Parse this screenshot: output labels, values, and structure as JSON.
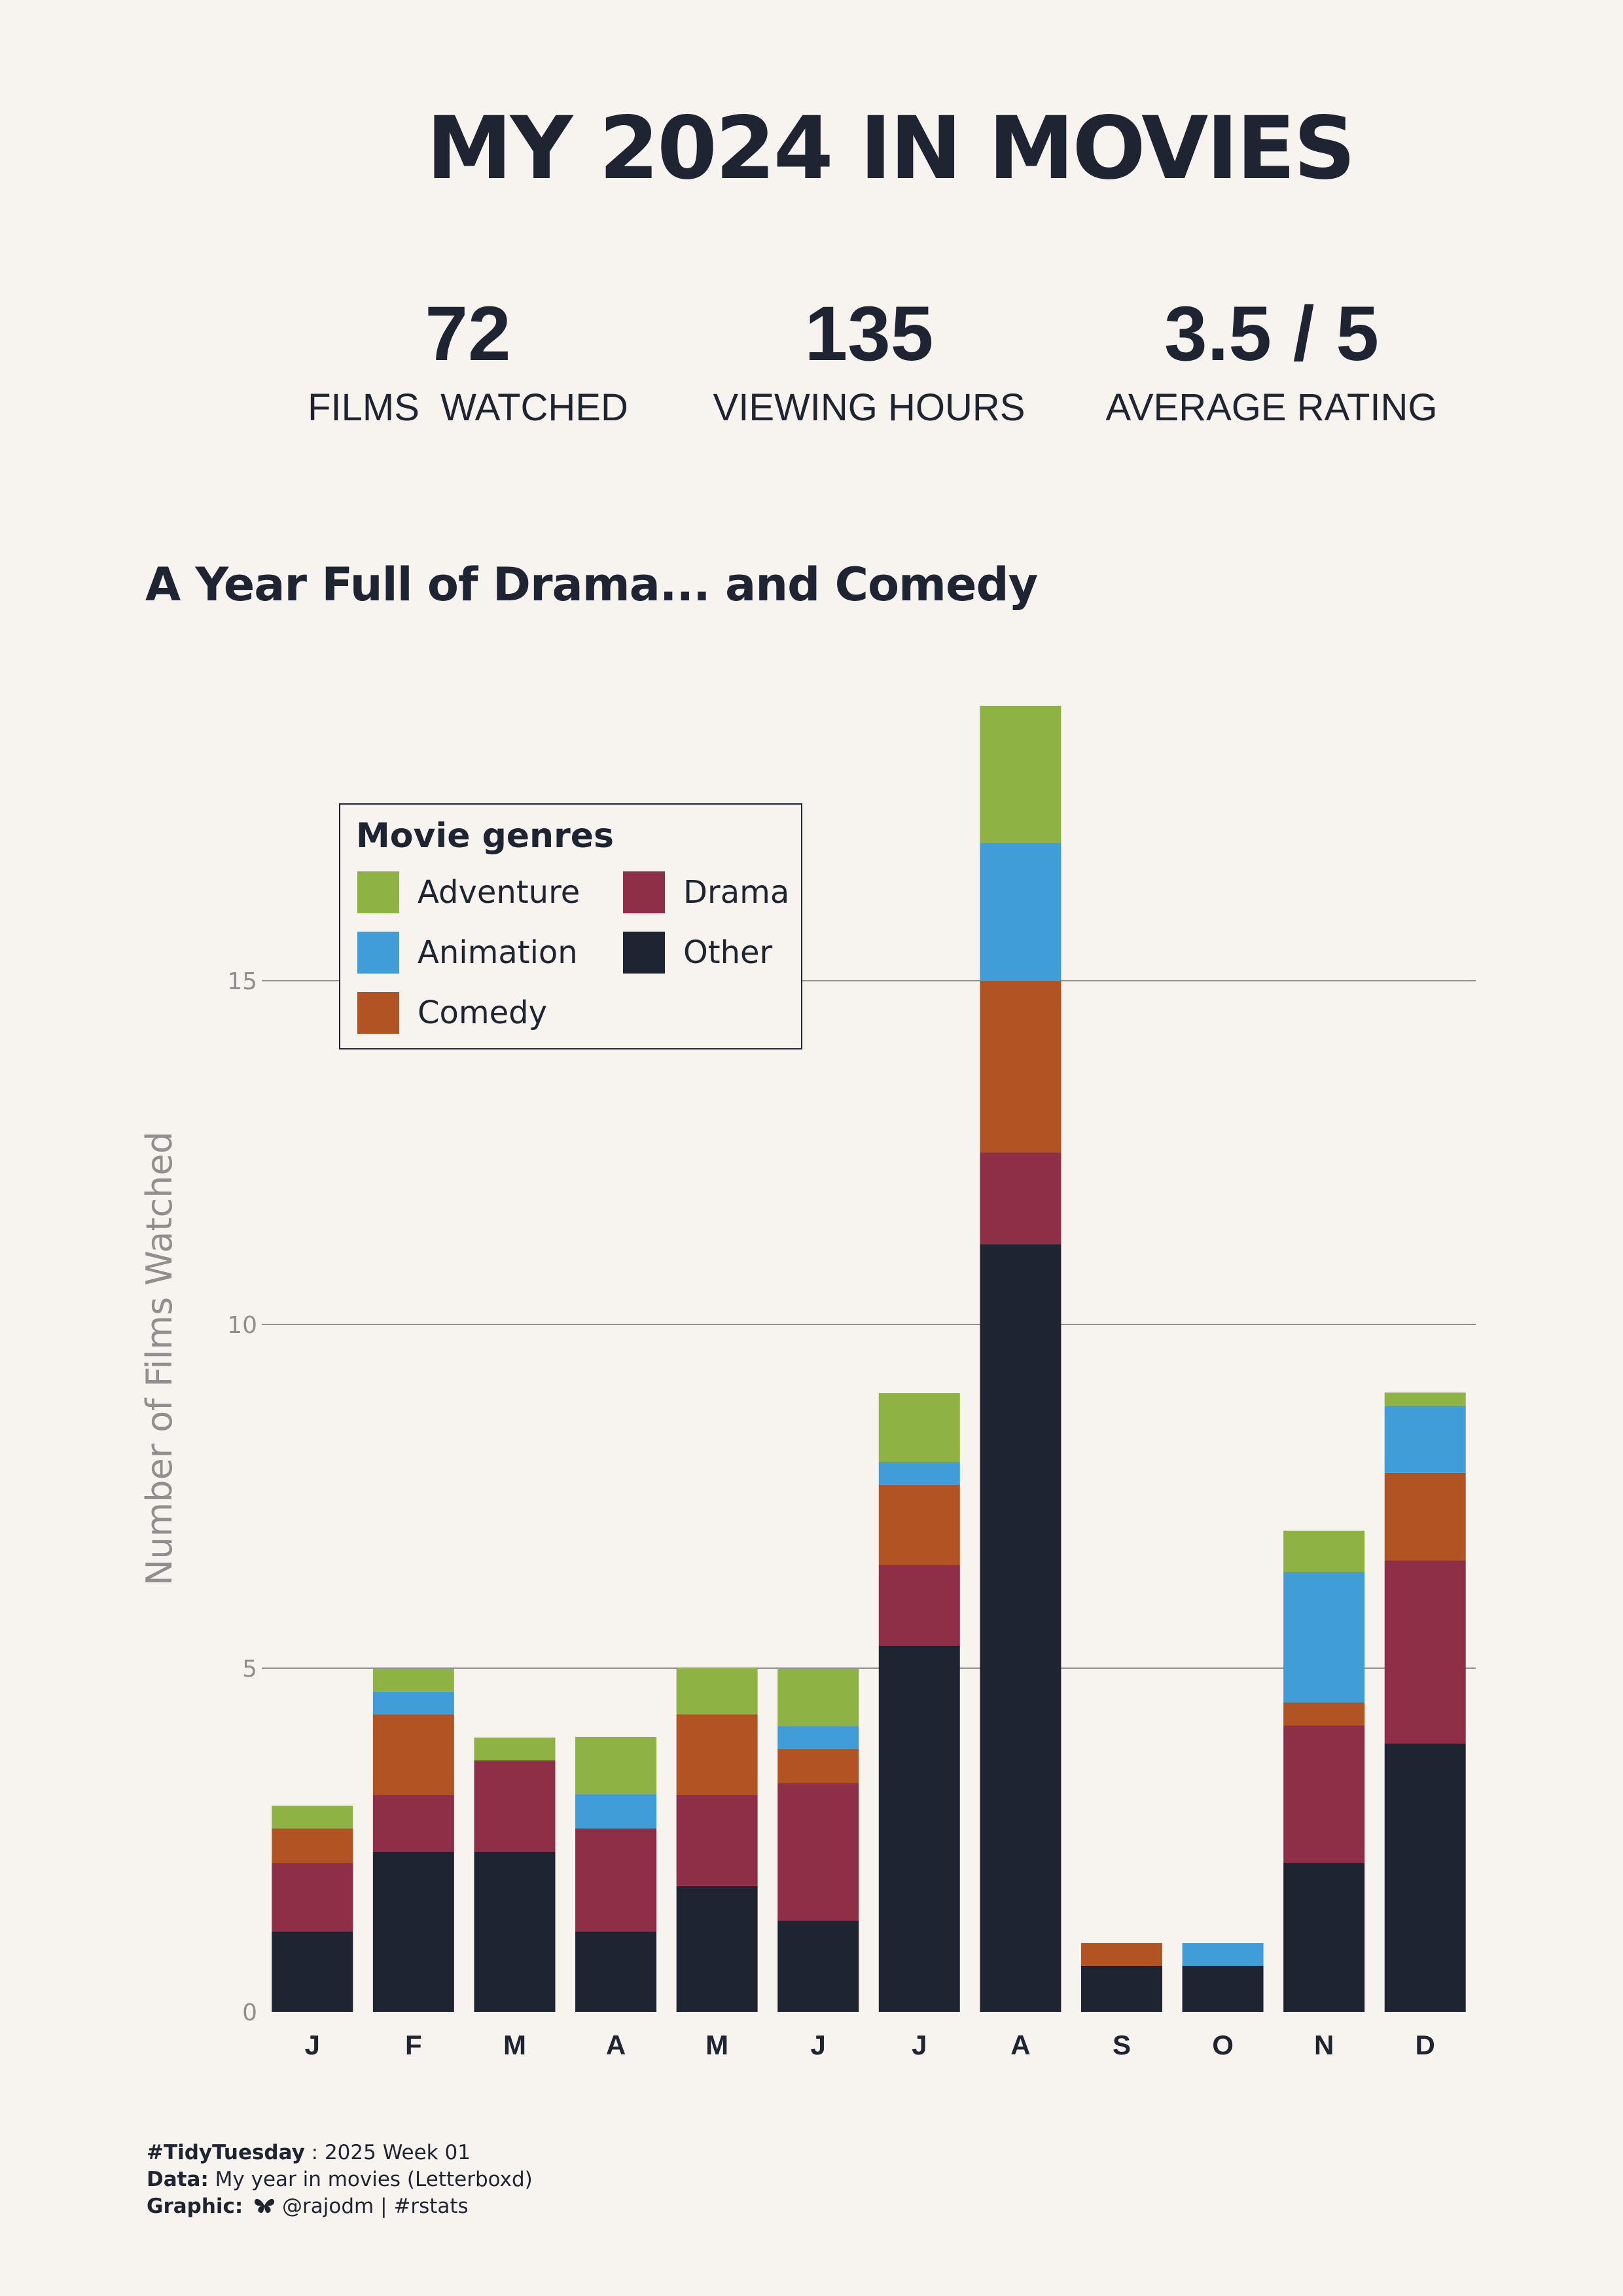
{
  "title": "MY 2024 IN MOVIES",
  "stats": [
    {
      "value": "72",
      "label": "FILMS  WATCHED"
    },
    {
      "value": "135",
      "label": "VIEWING HOURS"
    },
    {
      "value": "3.5 / 5",
      "label": "AVERAGE RATING"
    }
  ],
  "footer": {
    "line1_key": "#TidyTuesday",
    "line1_val": " : 2025 Week 01",
    "line2_key": "Data:",
    "line2_val": " My year in movies (Letterboxd)",
    "line3_key": "Graphic:",
    "line3_icon": "butterfly-icon",
    "line3_val": " @rajodm | #rstats"
  },
  "chart_data": {
    "type": "bar",
    "stacked": true,
    "title": "A Year Full of Drama... and Comedy",
    "xlabel": "",
    "ylabel": "Number of Films Watched",
    "ylim": [
      0,
      19
    ],
    "yticks": [
      0,
      5,
      10,
      15
    ],
    "grid": "horizontal",
    "legend_title": "Movie genres",
    "legend_position": "top-left",
    "categories": [
      "J",
      "F",
      "M",
      "A",
      "M",
      "J",
      "J",
      "A",
      "S",
      "O",
      "N",
      "D"
    ],
    "series": [
      {
        "name": "Other",
        "color": "#1e2431",
        "values": [
          1.17,
          2.33,
          2.33,
          1.17,
          1.83,
          1.33,
          5.33,
          11.17,
          0.67,
          0.67,
          2.17,
          3.9
        ]
      },
      {
        "name": "Drama",
        "color": "#8e2f47",
        "values": [
          1.0,
          0.83,
          1.33,
          1.5,
          1.33,
          2.0,
          1.17,
          1.33,
          0,
          0,
          2.0,
          2.67
        ]
      },
      {
        "name": "Comedy",
        "color": "#b25323",
        "values": [
          0.5,
          1.17,
          0,
          0,
          1.17,
          0.5,
          1.17,
          2.5,
          0.33,
          0,
          0.33,
          1.27
        ]
      },
      {
        "name": "Animation",
        "color": "#409dd7",
        "values": [
          0,
          0.33,
          0,
          0.5,
          0,
          0.33,
          0.33,
          2.0,
          0,
          0.33,
          1.9,
          0.97
        ]
      },
      {
        "name": "Adventure",
        "color": "#8fb244",
        "values": [
          0.33,
          0.33,
          0.33,
          0.83,
          0.67,
          0.83,
          1.0,
          2.0,
          0,
          0,
          0.6,
          0.2
        ]
      }
    ],
    "legend_order": [
      "Adventure",
      "Animation",
      "Comedy",
      "Drama",
      "Other"
    ],
    "colors": {
      "grid": "#8f8f8f",
      "axis_text": "#8f8f8f",
      "tick_x": "#1e2431"
    }
  }
}
